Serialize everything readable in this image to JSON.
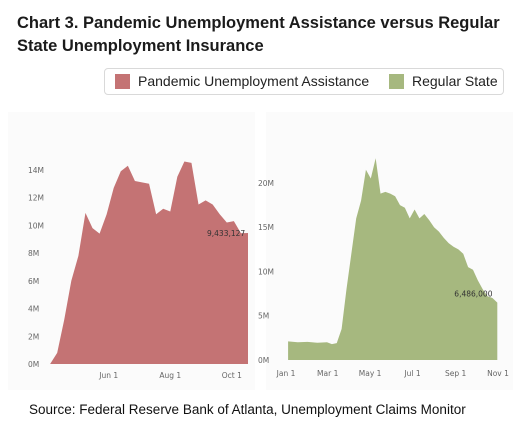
{
  "title": "Chart 3. Pandemic Unemployment Assistance versus Regular State Unemployment Insurance",
  "legend": [
    {
      "label": "Pandemic Unemployment Assistance",
      "color": "#c47374"
    },
    {
      "label": "Regular State",
      "color": "#a6b87f"
    }
  ],
  "source": "Source: Federal Reserve Bank of Atlanta, Unemployment Claims Monitor",
  "chart_data": [
    {
      "type": "area",
      "series": [
        {
          "name": "Pandemic Unemployment Assistance",
          "color": "#c47374"
        }
      ],
      "x_ticks": [
        "Jun 1",
        "Aug 1",
        "Oct 1"
      ],
      "y_ticks": [
        "0M",
        "2M",
        "4M",
        "6M",
        "8M",
        "10M",
        "12M",
        "14M"
      ],
      "ylim": [
        0,
        15
      ],
      "annotation": "9,433,127",
      "points": [
        [
          "Apr 4",
          0.0
        ],
        [
          "Apr 11",
          0.8
        ],
        [
          "Apr 18",
          3.2
        ],
        [
          "Apr 25",
          6.0
        ],
        [
          "May 2",
          7.8
        ],
        [
          "May 9",
          10.9
        ],
        [
          "May 16",
          9.8
        ],
        [
          "May 23",
          9.4
        ],
        [
          "May 30",
          10.8
        ],
        [
          "Jun 6",
          12.7
        ],
        [
          "Jun 13",
          13.9
        ],
        [
          "Jun 20",
          14.3
        ],
        [
          "Jun 27",
          13.2
        ],
        [
          "Jul 4",
          13.1
        ],
        [
          "Jul 11",
          13.0
        ],
        [
          "Jul 18",
          10.8
        ],
        [
          "Jul 25",
          11.2
        ],
        [
          "Aug 1",
          11.0
        ],
        [
          "Aug 8",
          13.5
        ],
        [
          "Aug 15",
          14.6
        ],
        [
          "Aug 22",
          14.5
        ],
        [
          "Aug 29",
          11.5
        ],
        [
          "Sep 5",
          11.8
        ],
        [
          "Sep 12",
          11.5
        ],
        [
          "Sep 19",
          10.8
        ],
        [
          "Sep 26",
          10.2
        ],
        [
          "Oct 3",
          10.3
        ],
        [
          "Oct 10",
          9.43
        ],
        [
          "Oct 17",
          9.45
        ]
      ]
    },
    {
      "type": "area",
      "series": [
        {
          "name": "Regular State",
          "color": "#a6b87f"
        }
      ],
      "x_ticks": [
        "Jan 1",
        "Mar 1",
        "May 1",
        "Jul 1",
        "Sep 1",
        "Nov 1"
      ],
      "y_ticks": [
        "0M",
        "5M",
        "10M",
        "15M",
        "20M"
      ],
      "ylim": [
        0,
        23.5
      ],
      "annotation": "6,486,000",
      "points": [
        [
          "Jan 4",
          2.1
        ],
        [
          "Jan 18",
          2.0
        ],
        [
          "Feb 1",
          2.05
        ],
        [
          "Feb 15",
          1.95
        ],
        [
          "Feb 29",
          2.0
        ],
        [
          "Mar 7",
          1.8
        ],
        [
          "Mar 14",
          1.9
        ],
        [
          "Mar 21",
          3.5
        ],
        [
          "Mar 28",
          8.0
        ],
        [
          "Apr 4",
          12.0
        ],
        [
          "Apr 11",
          16.0
        ],
        [
          "Apr 18",
          18.0
        ],
        [
          "Apr 25",
          21.5
        ],
        [
          "May 2",
          20.5
        ],
        [
          "May 9",
          22.8
        ],
        [
          "May 16",
          18.8
        ],
        [
          "May 23",
          19.0
        ],
        [
          "May 30",
          18.8
        ],
        [
          "Jun 6",
          18.5
        ],
        [
          "Jun 13",
          17.5
        ],
        [
          "Jun 20",
          17.2
        ],
        [
          "Jun 27",
          16.0
        ],
        [
          "Jul 4",
          17.0
        ],
        [
          "Jul 11",
          16.0
        ],
        [
          "Jul 18",
          16.5
        ],
        [
          "Jul 25",
          15.8
        ],
        [
          "Aug 1",
          15.0
        ],
        [
          "Aug 8",
          14.5
        ],
        [
          "Aug 15",
          13.8
        ],
        [
          "Aug 22",
          13.2
        ],
        [
          "Aug 29",
          12.8
        ],
        [
          "Sep 5",
          12.5
        ],
        [
          "Sep 12",
          12.0
        ],
        [
          "Sep 19",
          10.5
        ],
        [
          "Sep 26",
          10.2
        ],
        [
          "Oct 3",
          9.0
        ],
        [
          "Oct 10",
          8.0
        ],
        [
          "Oct 17",
          7.2
        ],
        [
          "Oct 24",
          7.0
        ],
        [
          "Oct 31",
          6.486
        ]
      ]
    }
  ]
}
